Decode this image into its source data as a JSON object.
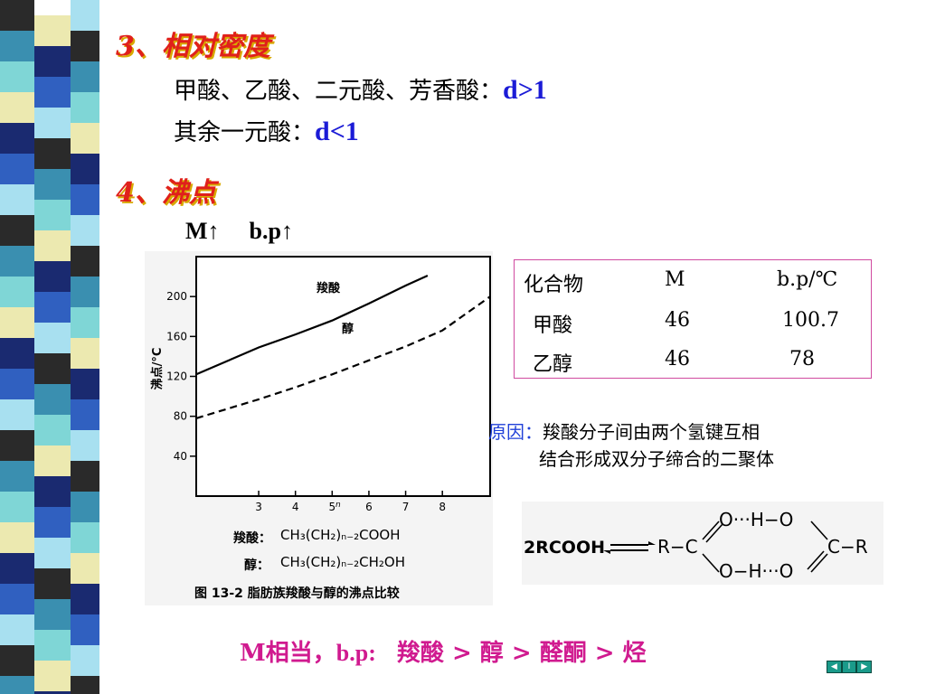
{
  "heading3": "3、相对密度",
  "line1_text": "甲酸、乙酸、二元酸、芳香酸：",
  "line1_val": "d>1",
  "line2_text": "其余一元酸：",
  "line2_val": "d<1",
  "heading4": "4、沸点",
  "mbp": {
    "m": "M",
    "bp": "b.p",
    "arrow": "↑"
  },
  "chart_data": {
    "type": "line",
    "ylabel": "沸点/°C",
    "xlabel": "n",
    "x_ticks": [
      "3",
      "4",
      "5",
      "6",
      "7",
      "8"
    ],
    "y_ticks": [
      "40",
      "80",
      "120",
      "160",
      "200"
    ],
    "xlim": [
      1.3,
      9.3
    ],
    "ylim": [
      0,
      240
    ],
    "series": [
      {
        "name": "羧酸",
        "style": "solid",
        "x": [
          1.3,
          3,
          4,
          5,
          6,
          7,
          7.6
        ],
        "y": [
          122,
          149,
          162,
          176,
          193,
          211,
          221
        ]
      },
      {
        "name": "醇",
        "style": "dashed",
        "x": [
          1.3,
          3,
          4,
          5,
          6,
          7,
          8,
          9.3
        ],
        "y": [
          78,
          97,
          109,
          122,
          136,
          150,
          166,
          200
        ]
      }
    ],
    "formula_acid_label": "羧酸：",
    "formula_acid": "CH₃(CH₂)ₙ₋₂COOH",
    "formula_alcohol_label": "醇：",
    "formula_alcohol": "CH₃(CH₂)ₙ₋₂CH₂OH",
    "caption": "图 13-2   脂肪族羧酸与醇的沸点比较"
  },
  "table": {
    "headers": [
      "化合物",
      "M",
      "b.p/℃"
    ],
    "rows": [
      [
        "甲酸",
        "46",
        "100.7"
      ],
      [
        "乙醇",
        "46",
        "78"
      ]
    ]
  },
  "reason": {
    "label": "原因：",
    "line1": "羧酸分子间由两个氢键互相",
    "line2": "结合形成双分子缔合的二聚体"
  },
  "dimer": {
    "left": "2RCOOH",
    "r1": "R−C",
    "top": "O···H−O",
    "bottom": "O−H···O",
    "r2": "C−R"
  },
  "bottom_line": {
    "m": "M相当，",
    "bp": "b.p:",
    "order": "羧酸 > 醇 > 醛酮 > 烃"
  },
  "nav": {
    "prev": "◀",
    "mid": "I",
    "next": "▶"
  },
  "colors": {
    "heading": "#e0201b",
    "blue": "#1b1bd6",
    "reason_label": "#2040d8",
    "bottom": "#d01a8f",
    "table_border": "#d04aa0"
  }
}
